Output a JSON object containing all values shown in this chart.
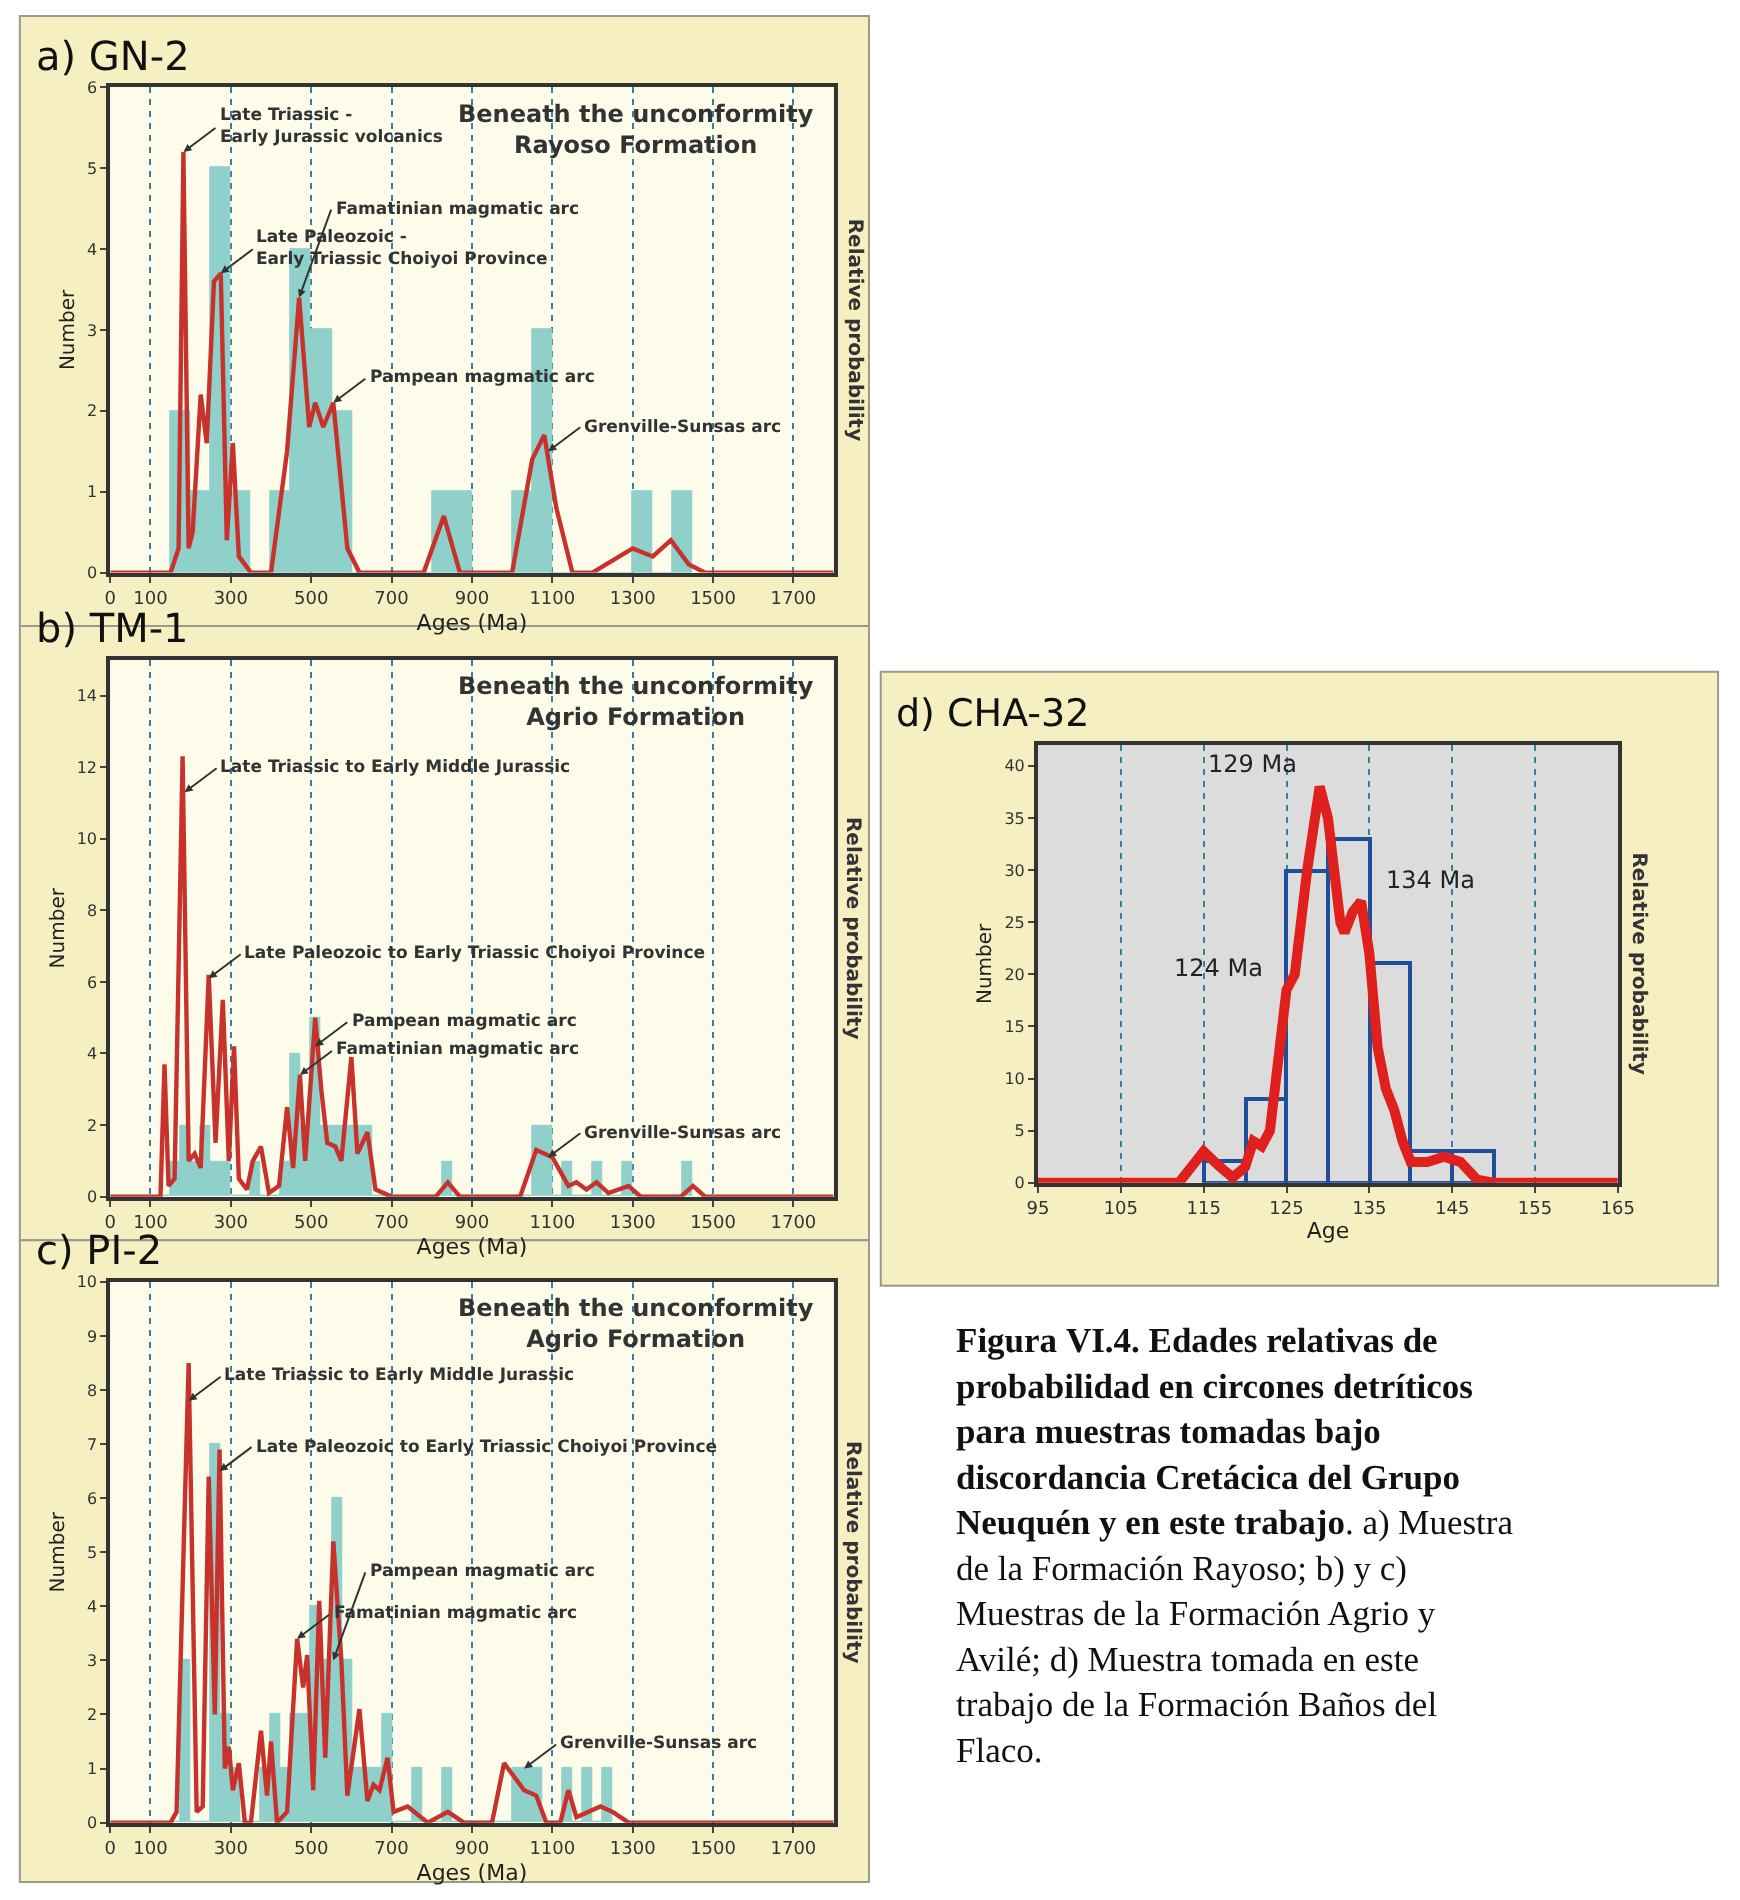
{
  "chart_data": [
    {
      "type": "histogram",
      "title": "a) GN-2",
      "subtitle": "Beneath the unconformity\nRayoso Formation",
      "xlabel": "Ages (Ma)",
      "ylabel": "Number",
      "y2label": "Relative probability",
      "xlim": [
        0,
        1800
      ],
      "xticks": [
        0,
        100,
        300,
        500,
        700,
        900,
        1100,
        1300,
        1500,
        1700
      ],
      "ylim": [
        0,
        6
      ],
      "yticks": [
        0,
        1,
        2,
        3,
        4,
        5,
        6
      ],
      "grid": "x",
      "series": [
        {
          "type": "histogram",
          "color": "#8fd0cb",
          "bins": [
            150,
            200,
            250,
            300,
            350,
            400,
            450,
            500,
            550,
            600,
            650,
            700,
            750,
            800,
            850,
            900,
            950,
            1000,
            1050,
            1100,
            1150,
            1200,
            1250,
            1300,
            1350,
            1400,
            1450
          ],
          "values": [
            2,
            1,
            5,
            1,
            0,
            1,
            4,
            3,
            2,
            0,
            0,
            0,
            0,
            1,
            1,
            0,
            0,
            1,
            3,
            0,
            0,
            0,
            0,
            1,
            0,
            1
          ]
        },
        {
          "type": "line",
          "color": "#c8322c",
          "x": [
            0,
            150,
            170,
            182,
            195,
            205,
            225,
            240,
            258,
            275,
            290,
            305,
            320,
            350,
            400,
            440,
            470,
            495,
            510,
            530,
            555,
            590,
            620,
            780,
            830,
            870,
            1000,
            1050,
            1080,
            1110,
            1150,
            1200,
            1300,
            1350,
            1395,
            1440,
            1480,
            1800
          ],
          "values": [
            0,
            0,
            0.3,
            5.2,
            0.3,
            0.5,
            2.2,
            1.6,
            3.6,
            3.7,
            0.4,
            1.6,
            0.2,
            0,
            0,
            1.5,
            3.4,
            1.8,
            2.1,
            1.8,
            2.1,
            0.3,
            0,
            0,
            0.7,
            0,
            0,
            1.4,
            1.7,
            0.8,
            0,
            0,
            0.3,
            0.2,
            0.4,
            0.1,
            0,
            0
          ]
        }
      ],
      "annotations": [
        {
          "text": "Late Triassic -\nEarly Jurassic volcanics",
          "x": 182,
          "y": 5.2
        },
        {
          "text": "Late Paleozoic -\nEarly Triassic Choiyoi Province",
          "x": 275,
          "y": 3.7
        },
        {
          "text": "Famatinian magmatic arc",
          "x": 470,
          "y": 3.4
        },
        {
          "text": "Pampean magmatic arc",
          "x": 555,
          "y": 2.1
        },
        {
          "text": "Grenville-Sunsas arc",
          "x": 1090,
          "y": 1.5
        }
      ]
    },
    {
      "type": "histogram",
      "title": "b) TM-1",
      "subtitle": "Beneath the unconformity\nAgrio Formation",
      "xlabel": "Ages (Ma)",
      "ylabel": "Number",
      "y2label": "Relative probability",
      "xlim": [
        0,
        1800
      ],
      "xticks": [
        0,
        100,
        300,
        500,
        700,
        900,
        1100,
        1300,
        1500,
        1700
      ],
      "ylim": [
        0,
        15
      ],
      "yticks": [
        0,
        2,
        4,
        6,
        8,
        10,
        12,
        14
      ],
      "grid": "x",
      "series": [
        {
          "type": "histogram",
          "color": "#8fd0cb",
          "bins": [
            125,
            150,
            175,
            200,
            225,
            250,
            275,
            300,
            325,
            350,
            375,
            400,
            425,
            450,
            475,
            500,
            525,
            550,
            575,
            600,
            625,
            650,
            675,
            700,
            725,
            750,
            775,
            800,
            825,
            850,
            875,
            900,
            925,
            950,
            975,
            1000,
            1025,
            1050,
            1075,
            1100,
            1125,
            1150,
            1175,
            1200,
            1225,
            1250,
            1275,
            1300,
            1325,
            1350,
            1375,
            1400,
            1425,
            1450
          ],
          "values": [
            0,
            1,
            2,
            1,
            2,
            1,
            1,
            0,
            0,
            1,
            0,
            0,
            1,
            4,
            2,
            5,
            2,
            2,
            2,
            2,
            2,
            0,
            0,
            0,
            0,
            0,
            0,
            0,
            1,
            0,
            0,
            0,
            0,
            0,
            0,
            0,
            0,
            2,
            2,
            0,
            1,
            0,
            0,
            1,
            0,
            0,
            1,
            0,
            0,
            0,
            0,
            0,
            1
          ]
        },
        {
          "type": "line",
          "color": "#c8322c",
          "x": [
            0,
            125,
            135,
            145,
            160,
            180,
            195,
            210,
            225,
            245,
            262,
            280,
            295,
            308,
            320,
            340,
            355,
            375,
            395,
            420,
            440,
            455,
            472,
            485,
            510,
            525,
            540,
            560,
            575,
            600,
            615,
            640,
            660,
            700,
            810,
            840,
            870,
            1020,
            1060,
            1100,
            1140,
            1160,
            1185,
            1210,
            1240,
            1290,
            1320,
            1420,
            1450,
            1480,
            1800
          ],
          "values": [
            0,
            0,
            3.7,
            0.3,
            0.5,
            12.3,
            1,
            1.2,
            0.8,
            6.2,
            1.5,
            5.5,
            1,
            4.2,
            0.5,
            0.2,
            1,
            1.4,
            0.1,
            0.3,
            2.5,
            0.8,
            3.4,
            1,
            5,
            3,
            1.5,
            1.4,
            1,
            3.9,
            1.2,
            1.8,
            0.2,
            0,
            0,
            0.4,
            0,
            0,
            1.3,
            1.1,
            0.3,
            0.4,
            0.2,
            0.4,
            0.1,
            0.3,
            0,
            0,
            0.3,
            0,
            0
          ]
        }
      ],
      "annotations": [
        {
          "text": "Late Triassic to Early Middle Jurassic",
          "x": 185,
          "y": 11.3
        },
        {
          "text": "Late Paleozoic to Early Triassic Choiyoi Province",
          "x": 245,
          "y": 6.1
        },
        {
          "text": "Famatinian magmatic arc",
          "x": 472,
          "y": 3.4
        },
        {
          "text": "Pampean magmatic arc",
          "x": 510,
          "y": 4.2
        },
        {
          "text": "Grenville-Sunsas arc",
          "x": 1090,
          "y": 1.1
        }
      ]
    },
    {
      "type": "histogram",
      "title": "c) PI-2",
      "subtitle": "Beneath the unconformity\nAgrio Formation",
      "xlabel": "Ages (Ma)",
      "ylabel": "Number",
      "y2label": "Relative probability",
      "xlim": [
        0,
        1800
      ],
      "xticks": [
        0,
        100,
        300,
        500,
        700,
        900,
        1100,
        1300,
        1500,
        1700
      ],
      "ylim": [
        0,
        10
      ],
      "yticks": [
        0,
        1,
        2,
        3,
        4,
        5,
        6,
        7,
        8,
        9,
        10
      ],
      "grid": "x",
      "series": [
        {
          "type": "histogram",
          "color": "#8fd0cb",
          "bins": [
            150,
            175,
            200,
            225,
            250,
            275,
            300,
            325,
            350,
            375,
            400,
            425,
            450,
            475,
            500,
            525,
            550,
            575,
            600,
            625,
            650,
            675,
            700,
            725,
            750,
            775,
            800,
            825,
            850,
            875,
            900,
            925,
            950,
            975,
            1000,
            1025,
            1050,
            1075,
            1100,
            1125,
            1150,
            1175,
            1200,
            1225,
            1250
          ],
          "values": [
            0,
            3,
            0,
            0,
            7,
            2,
            1,
            0,
            0,
            1,
            2,
            1,
            2,
            2,
            4,
            3,
            6,
            3,
            1,
            1,
            1,
            2,
            0,
            0,
            1,
            0,
            0,
            1,
            0,
            0,
            0,
            0,
            0,
            0,
            1,
            1,
            1,
            0,
            0,
            1,
            0,
            1,
            0,
            1
          ]
        },
        {
          "type": "line",
          "color": "#c8322c",
          "x": [
            0,
            150,
            165,
            195,
            215,
            230,
            245,
            260,
            272,
            285,
            295,
            305,
            320,
            335,
            350,
            375,
            390,
            400,
            415,
            440,
            465,
            480,
            490,
            505,
            520,
            535,
            555,
            575,
            590,
            620,
            640,
            655,
            670,
            690,
            705,
            740,
            790,
            840,
            880,
            950,
            980,
            1000,
            1030,
            1060,
            1085,
            1120,
            1140,
            1160,
            1190,
            1220,
            1250,
            1290,
            1800
          ],
          "values": [
            0,
            0,
            0.2,
            8.5,
            0.2,
            0.3,
            6.4,
            2,
            6.9,
            1,
            1.4,
            0.6,
            1.1,
            0,
            0,
            1.7,
            0.5,
            1.5,
            0,
            0.2,
            3.4,
            2.5,
            3.1,
            0.6,
            4.1,
            1.2,
            5.2,
            3,
            0.5,
            2.1,
            0.4,
            0.7,
            0.6,
            1.2,
            0.2,
            0.3,
            0,
            0.2,
            0,
            0,
            1.1,
            0.9,
            0.6,
            0.5,
            0,
            0,
            0.6,
            0.1,
            0.2,
            0.3,
            0.2,
            0,
            0
          ]
        }
      ],
      "annotations": [
        {
          "text": "Late Triassic to Early Middle Jurassic",
          "x": 195,
          "y": 7.8
        },
        {
          "text": "Late Paleozoic to Early Triassic Choiyoi Province",
          "x": 272,
          "y": 6.5
        },
        {
          "text": "Famatinian magmatic arc",
          "x": 465,
          "y": 3.4
        },
        {
          "text": "Pampean magmatic arc",
          "x": 555,
          "y": 3
        },
        {
          "text": "Grenville-Sunsas arc",
          "x": 1030,
          "y": 1
        }
      ]
    },
    {
      "type": "histogram",
      "title": "d) CHA-32",
      "xlabel": "Age",
      "ylabel": "Number",
      "y2label": "Relative probability",
      "xlim": [
        95,
        165
      ],
      "xticks": [
        95,
        105,
        115,
        125,
        135,
        145,
        155,
        165
      ],
      "ylim": [
        0,
        42
      ],
      "yticks": [
        0,
        5,
        10,
        15,
        20,
        25,
        30,
        35,
        40
      ],
      "grid": "x",
      "series": [
        {
          "type": "histogram",
          "color": "#1f4e9a",
          "bins": [
            115,
            120,
            125,
            130,
            135,
            140,
            145,
            150
          ],
          "values": [
            2,
            8,
            30,
            33,
            21,
            3,
            3
          ]
        },
        {
          "type": "line",
          "color": "#e0201c",
          "x": [
            95,
            112,
            115,
            117,
            118.5,
            120,
            121,
            122,
            123,
            125,
            126,
            127.5,
            129,
            130,
            131.5,
            132,
            133,
            134,
            135,
            136,
            137,
            138,
            139,
            140,
            142,
            144,
            146,
            148,
            150,
            165
          ],
          "values": [
            0,
            0,
            3,
            1.5,
            0.5,
            1.5,
            4,
            3.5,
            5,
            18.5,
            20,
            30,
            38,
            35,
            25,
            24,
            26,
            27,
            22,
            13,
            9,
            7,
            4,
            2,
            2,
            2.5,
            2,
            0.3,
            0,
            0
          ]
        }
      ],
      "annotations": [
        {
          "text": "129 Ma",
          "x": 129,
          "y": 38
        },
        {
          "text": "134 Ma",
          "x": 134,
          "y": 27
        },
        {
          "text": "124 Ma",
          "x": 125,
          "y": 18.5
        }
      ]
    },
    {
      "type": "other",
      "title": "Figura VI.4. Edades relativas de probabilidad en circones detríticos para muestras tomadas bajo discordancia Cretácica del Grupo Neuquén y en este trabajo",
      "annotations": [
        ". a) Muestra de la Formación Rayoso; b) y c) Muestras de la Formación Agrio y Avilé; d) Muestra tomada en este trabajo de la Formación Baños del Flaco."
      ]
    }
  ]
}
